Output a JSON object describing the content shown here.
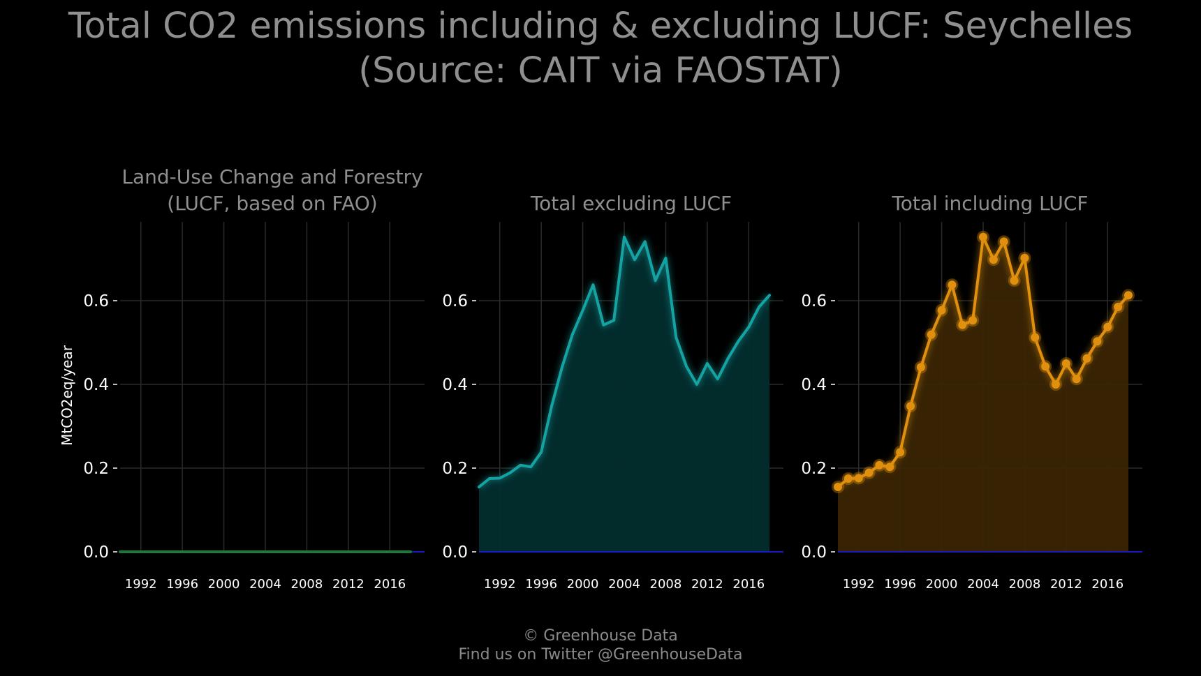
{
  "title": {
    "line1": "Total CO2 emissions including & excluding LUCF: Seychelles",
    "line2": "(Source: CAIT via FAOSTAT)"
  },
  "footer": {
    "line1": "© Greenhouse Data",
    "line2": "Find us on Twitter @GreenhouseData"
  },
  "colors": {
    "background": "#000000",
    "grid": "#2a2a2a",
    "title_text": "#8f8f8f",
    "tick_text": "#ffffff",
    "baseline": "#1a1aff",
    "lucf": "#1f7a3a",
    "excluding": "#14a3a3",
    "excluding_fill": "#022d2e",
    "including": "#e0900e",
    "including_fill": "#3a2504"
  },
  "chart_data": [
    {
      "type": "line",
      "title": "Land-Use Change and Forestry\n(LUCF, based on FAO)",
      "ylabel": "MtCO2eq/year",
      "xlabel": "",
      "x": [
        1990,
        1991,
        1992,
        1993,
        1994,
        1995,
        1996,
        1997,
        1998,
        1999,
        2000,
        2001,
        2002,
        2003,
        2004,
        2005,
        2006,
        2007,
        2008,
        2009,
        2010,
        2011,
        2012,
        2013,
        2014,
        2015,
        2016,
        2017,
        2018
      ],
      "values": [
        0,
        0,
        0,
        0,
        0,
        0,
        0,
        0,
        0,
        0,
        0,
        0,
        0,
        0,
        0,
        0,
        0,
        0,
        0,
        0,
        0,
        0,
        0,
        0,
        0,
        0,
        0,
        0,
        0
      ],
      "xticks": [
        "1992",
        "1996",
        "2000",
        "2004",
        "2008",
        "2012",
        "2016"
      ],
      "yticks": [
        "0.0",
        "0.2",
        "0.4",
        "0.6"
      ],
      "ylim": [
        0,
        0.78
      ],
      "grid": true
    },
    {
      "type": "area",
      "title": "Total excluding LUCF",
      "xlabel": "",
      "ylabel": "",
      "x": [
        1990,
        1991,
        1992,
        1993,
        1994,
        1995,
        1996,
        1997,
        1998,
        1999,
        2000,
        2001,
        2002,
        2003,
        2004,
        2005,
        2006,
        2007,
        2008,
        2009,
        2010,
        2011,
        2012,
        2013,
        2014,
        2015,
        2016,
        2017,
        2018
      ],
      "values": [
        0.155,
        0.175,
        0.176,
        0.189,
        0.207,
        0.203,
        0.238,
        0.348,
        0.441,
        0.519,
        0.577,
        0.638,
        0.542,
        0.553,
        0.752,
        0.698,
        0.741,
        0.648,
        0.702,
        0.512,
        0.443,
        0.4,
        0.45,
        0.413,
        0.462,
        0.503,
        0.537,
        0.585,
        0.613
      ],
      "xticks": [
        "1992",
        "1996",
        "2000",
        "2004",
        "2008",
        "2012",
        "2016"
      ],
      "yticks": [
        "0.0",
        "0.2",
        "0.4",
        "0.6"
      ],
      "ylim": [
        0,
        0.78
      ],
      "grid": true
    },
    {
      "type": "area",
      "title": "Total including LUCF",
      "xlabel": "",
      "ylabel": "",
      "x": [
        1990,
        1991,
        1992,
        1993,
        1994,
        1995,
        1996,
        1997,
        1998,
        1999,
        2000,
        2001,
        2002,
        2003,
        2004,
        2005,
        2006,
        2007,
        2008,
        2009,
        2010,
        2011,
        2012,
        2013,
        2014,
        2015,
        2016,
        2017,
        2018
      ],
      "values": [
        0.155,
        0.175,
        0.176,
        0.189,
        0.207,
        0.203,
        0.238,
        0.348,
        0.441,
        0.519,
        0.577,
        0.638,
        0.542,
        0.553,
        0.752,
        0.698,
        0.741,
        0.648,
        0.702,
        0.512,
        0.443,
        0.4,
        0.45,
        0.413,
        0.462,
        0.503,
        0.537,
        0.585,
        0.613
      ],
      "xticks": [
        "1992",
        "1996",
        "2000",
        "2004",
        "2008",
        "2012",
        "2016"
      ],
      "yticks": [
        "0.0",
        "0.2",
        "0.4",
        "0.6"
      ],
      "ylim": [
        0,
        0.78
      ],
      "grid": true,
      "markers": true
    }
  ]
}
